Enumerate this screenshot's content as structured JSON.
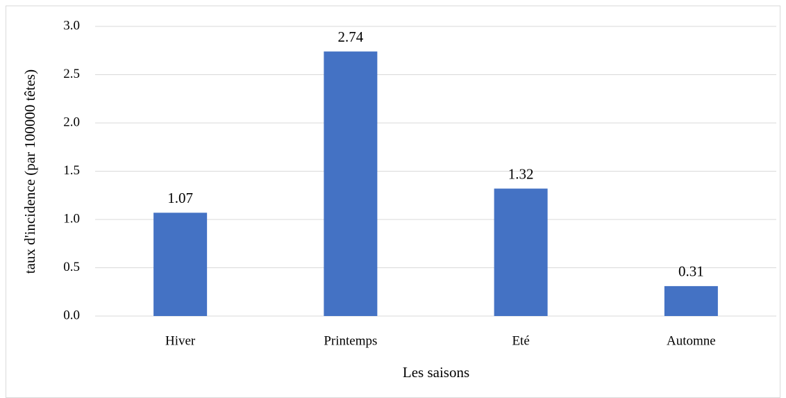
{
  "chart_data": {
    "type": "bar",
    "categories": [
      "Hiver",
      "Printemps",
      "Eté",
      "Automne"
    ],
    "values": [
      1.07,
      2.74,
      1.32,
      0.31
    ],
    "color": "#4472c4",
    "x_label": "Les saisons",
    "y_label": "taux d'incidence (par 100000 têtes)",
    "ylim": [
      0,
      3
    ],
    "yticks": [
      {
        "value": 0,
        "label": "0.0"
      },
      0.5,
      {
        "value": 1,
        "label": "1.0"
      },
      1.5,
      {
        "value": 2,
        "label": "2.0"
      },
      2.5,
      {
        "value": 3,
        "label": "3.0"
      }
    ],
    "grid": true
  }
}
